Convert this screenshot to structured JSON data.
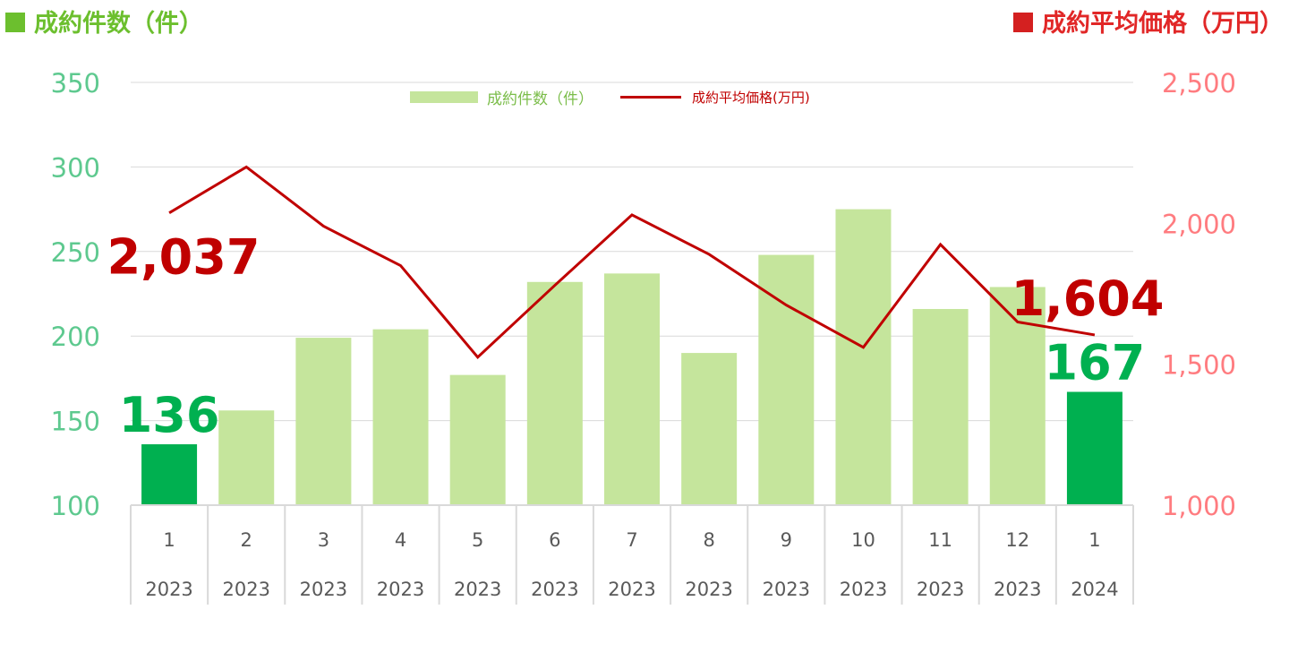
{
  "headings": {
    "left": "成約件数（件）",
    "right": "成約平均価格（万円）",
    "left_color": "#6cbf2e",
    "right_color": "#d42020"
  },
  "legend": {
    "bar_label": "成約件数（件）",
    "line_label": "成約平均価格(万円)"
  },
  "chart_data": {
    "type": "bar",
    "combo": "bar+line",
    "categories": [
      "1",
      "2",
      "3",
      "4",
      "5",
      "6",
      "7",
      "8",
      "9",
      "10",
      "11",
      "12",
      "1"
    ],
    "years": [
      "2023",
      "2023",
      "2023",
      "2023",
      "2023",
      "2023",
      "2023",
      "2023",
      "2023",
      "2023",
      "2023",
      "2023",
      "2024"
    ],
    "series": [
      {
        "name": "成約件数（件）",
        "type": "bar",
        "axis": "left",
        "values": [
          136,
          156,
          199,
          204,
          177,
          232,
          237,
          190,
          248,
          275,
          216,
          229,
          167
        ],
        "color": "#c5e59c",
        "highlight_color": "#00b050",
        "highlight_indices": [
          0,
          12
        ]
      },
      {
        "name": "成約平均価格(万円)",
        "type": "line",
        "axis": "right",
        "values": [
          2037,
          2200,
          1990,
          1850,
          1525,
          1780,
          2030,
          1890,
          1710,
          1560,
          1925,
          1650,
          1604
        ],
        "color": "#c00000"
      }
    ],
    "y_left": {
      "min": 100,
      "max": 350,
      "ticks": [
        "100",
        "150",
        "200",
        "250",
        "300",
        "350"
      ],
      "color": "#5ec98f"
    },
    "y_right": {
      "min": 1000,
      "max": 2500,
      "ticks": [
        "1,000",
        "1,500",
        "2,000",
        "2,500"
      ],
      "color": "#ff7c80"
    },
    "annotations": [
      {
        "series": 0,
        "index": 0,
        "text": "136",
        "color": "#00b050"
      },
      {
        "series": 0,
        "index": 12,
        "text": "167",
        "color": "#00b050"
      },
      {
        "series": 1,
        "index": 0,
        "text": "2,037",
        "color": "#c00000"
      },
      {
        "series": 1,
        "index": 12,
        "text": "1,604",
        "color": "#c00000"
      }
    ],
    "grid": true,
    "legend_position": "top"
  }
}
